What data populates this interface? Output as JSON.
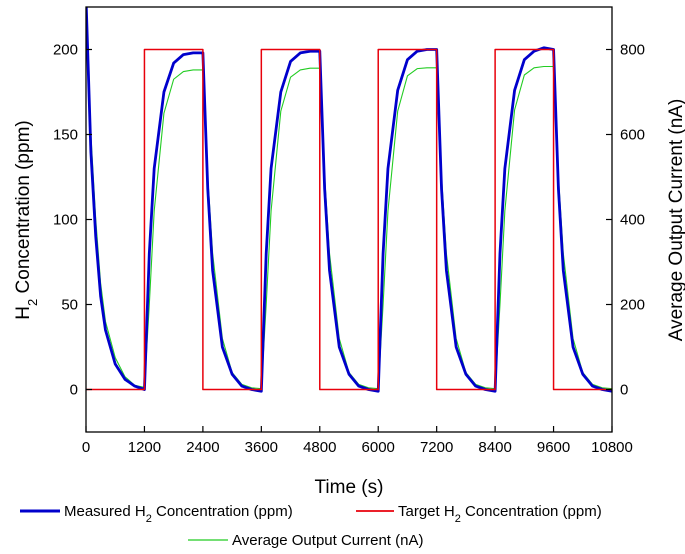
{
  "chart_data": {
    "type": "line",
    "xlabel": "Time (s)",
    "ylabel": "H2 Concentration (ppm)",
    "ylabel_parts": [
      "H",
      "2",
      " Concentration (ppm)"
    ],
    "y2label": "Average Output Current (nA)",
    "xlim": [
      0,
      10800
    ],
    "ylim": [
      -25,
      225
    ],
    "y2lim": [
      -100,
      900
    ],
    "xticks": [
      "0",
      "1200",
      "2400",
      "3600",
      "4800",
      "6000",
      "7200",
      "8400",
      "9600",
      "10800"
    ],
    "yticks": [
      "0",
      "50",
      "100",
      "150",
      "200"
    ],
    "y2ticks": [
      "0",
      "200",
      "400",
      "600",
      "800"
    ],
    "grid": false,
    "legend_position": "bottom",
    "cycles": [
      {
        "on_start": 1200,
        "off_start": 2400
      },
      {
        "on_start": 3600,
        "off_start": 4800
      },
      {
        "on_start": 6000,
        "off_start": 7200
      },
      {
        "on_start": 8400,
        "off_start": 9600
      }
    ],
    "series": [
      {
        "name": "Measured H2 Concentration (ppm)",
        "legend_parts": [
          "Measured H",
          "2",
          " Concentration (ppm)"
        ],
        "axis": "left",
        "color": "#0000cc",
        "x": [
          0,
          100,
          200,
          300,
          400,
          600,
          800,
          1000,
          1200,
          1300,
          1400,
          1600,
          1800,
          2000,
          2200,
          2400,
          2500,
          2600,
          2800,
          3000,
          3200,
          3400,
          3600,
          3700,
          3800,
          4000,
          4200,
          4400,
          4600,
          4800,
          4900,
          5000,
          5200,
          5400,
          5600,
          5800,
          6000,
          6100,
          6200,
          6400,
          6600,
          6800,
          7000,
          7200,
          7300,
          7400,
          7600,
          7800,
          8000,
          8200,
          8400,
          8500,
          8600,
          8800,
          9000,
          9200,
          9400,
          9600,
          9700,
          9800,
          10000,
          10200,
          10400,
          10600,
          10800
        ],
        "values": [
          230,
          140,
          90,
          55,
          35,
          15,
          6,
          2,
          0,
          80,
          130,
          175,
          192,
          197,
          198,
          198,
          118,
          70,
          25,
          9,
          2,
          0,
          -1,
          80,
          130,
          175,
          193,
          198,
          199,
          199,
          118,
          70,
          25,
          9,
          2,
          0,
          -1,
          80,
          130,
          176,
          194,
          199,
          200,
          200,
          118,
          70,
          25,
          9,
          2,
          0,
          -1,
          80,
          130,
          176,
          194,
          199,
          201,
          200,
          118,
          70,
          25,
          9,
          2,
          0,
          -1
        ]
      },
      {
        "name": "Target H2 Concentration (ppm)",
        "legend_parts": [
          "Target H",
          "2",
          " Concentration (ppm)"
        ],
        "axis": "left",
        "color": "#e8000b",
        "x": [
          0,
          1200,
          1200,
          2400,
          2400,
          3600,
          3600,
          4800,
          4800,
          6000,
          6000,
          7200,
          7200,
          8400,
          8400,
          9600,
          9600,
          10800
        ],
        "values": [
          0,
          0,
          200,
          200,
          0,
          0,
          200,
          200,
          0,
          0,
          200,
          200,
          0,
          0,
          200,
          200,
          0,
          0
        ]
      },
      {
        "name": "Average Output Current (nA)",
        "legend_parts": [
          "Average Output Current (nA)"
        ],
        "axis": "right",
        "color": "#22cc22",
        "x": [
          0,
          100,
          200,
          300,
          400,
          600,
          800,
          1000,
          1200,
          1300,
          1400,
          1600,
          1800,
          2000,
          2200,
          2400,
          2500,
          2600,
          2800,
          3000,
          3200,
          3400,
          3600,
          3700,
          3800,
          4000,
          4200,
          4400,
          4600,
          4800,
          4900,
          5000,
          5200,
          5400,
          5600,
          5800,
          6000,
          6100,
          6200,
          6400,
          6600,
          6800,
          7000,
          7200,
          7300,
          7400,
          7600,
          7800,
          8000,
          8200,
          8400,
          8500,
          8600,
          8800,
          9000,
          9200,
          9400,
          9600,
          9700,
          9800,
          10000,
          10200,
          10400,
          10600,
          10800
        ],
        "values": [
          920,
          600,
          400,
          250,
          160,
          75,
          30,
          10,
          5,
          200,
          420,
          650,
          730,
          748,
          752,
          752,
          500,
          320,
          120,
          40,
          12,
          4,
          2,
          200,
          420,
          655,
          735,
          752,
          756,
          756,
          500,
          320,
          120,
          40,
          12,
          4,
          2,
          200,
          420,
          655,
          738,
          755,
          757,
          757,
          500,
          320,
          120,
          40,
          12,
          4,
          2,
          200,
          420,
          658,
          740,
          757,
          760,
          760,
          500,
          320,
          120,
          40,
          12,
          4,
          2
        ]
      }
    ]
  }
}
